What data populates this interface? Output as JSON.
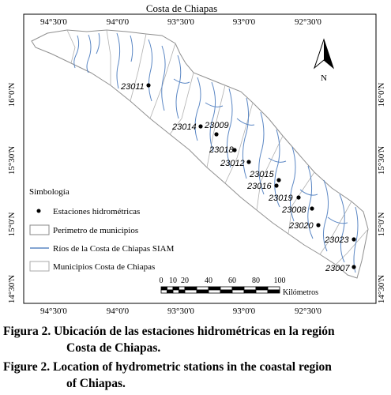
{
  "map": {
    "title": "Costa de Chiapas",
    "top_ticks": [
      "94°30'0",
      "94°0'0",
      "93°30'0",
      "93°0'0",
      "92°30'0"
    ],
    "bottom_ticks": [
      "94°30'0",
      "94°0'0",
      "93°30'0",
      "93°0'0",
      "92°30'0"
    ],
    "left_ticks": [
      "16°0'N",
      "15°30'N",
      "15°0'N",
      "14°30'N"
    ],
    "right_ticks": [
      "16°0'N",
      "15°30'N",
      "15°0'N",
      "14°30'N"
    ],
    "north_label": "N",
    "stations": [
      {
        "id": "23011"
      },
      {
        "id": "23014"
      },
      {
        "id": "23009"
      },
      {
        "id": "23018"
      },
      {
        "id": "23012"
      },
      {
        "id": "23015"
      },
      {
        "id": "23016"
      },
      {
        "id": "23019"
      },
      {
        "id": "23008"
      },
      {
        "id": "23020"
      },
      {
        "id": "23023"
      },
      {
        "id": "23007"
      }
    ],
    "legend": {
      "title": "Simbología",
      "items": [
        {
          "label": "Estaciones hidrométricas",
          "symbol": "point"
        },
        {
          "label": "Perímetro de municipios",
          "symbol": "box"
        },
        {
          "label": "Ríos de la Costa de Chiapas SIAM",
          "symbol": "line",
          "color": "#5b87c4"
        },
        {
          "label": "Municipios Costa de Chiapas",
          "symbol": "box"
        }
      ]
    },
    "scale_bar": {
      "ticks": [
        "0",
        "10",
        "20",
        "40",
        "60",
        "80",
        "100"
      ],
      "unit": "Kilómetros"
    },
    "colors": {
      "river": "#5b87c4",
      "boundary": "#9a9a9a",
      "station": "#000000"
    }
  },
  "caption": {
    "es_line1": "Figura 2. Ubicación de las estaciones hidrométricas en la región",
    "es_line2": "Costa de Chiapas.",
    "en_line1": "Figure 2. Location of hydrometric stations in the coastal region",
    "en_line2": "of Chiapas."
  }
}
